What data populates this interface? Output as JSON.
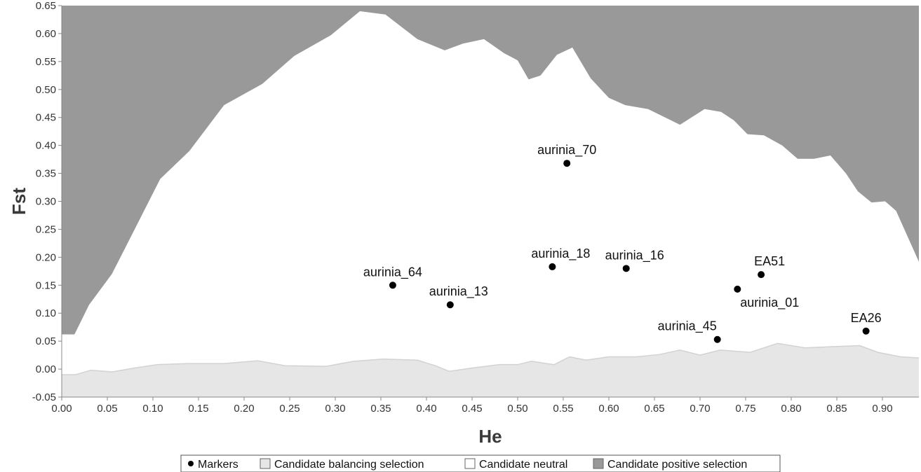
{
  "chart_data": {
    "type": "area",
    "xlabel": "He",
    "ylabel": "Fst",
    "xlim": [
      0.0,
      0.94
    ],
    "ylim": [
      -0.05,
      0.65
    ],
    "x_ticks": [
      "0.00",
      "0.05",
      "0.10",
      "0.15",
      "0.20",
      "0.25",
      "0.30",
      "0.35",
      "0.40",
      "0.45",
      "0.50",
      "0.55",
      "0.60",
      "0.65",
      "0.70",
      "0.75",
      "0.80",
      "0.85",
      "0.90"
    ],
    "y_ticks": [
      "-0.05",
      "0.00",
      "0.05",
      "0.10",
      "0.15",
      "0.20",
      "0.25",
      "0.30",
      "0.35",
      "0.40",
      "0.45",
      "0.50",
      "0.55",
      "0.60",
      "0.65"
    ],
    "grid": false,
    "legend_position": "bottom",
    "colors": {
      "positive_selection": "#999999",
      "neutral": "#ffffff",
      "balancing_selection": "#e6e6e6",
      "balancing_edge": "#d2d2d2",
      "marker": "#000000",
      "axis": "#888888"
    },
    "legend": [
      {
        "key": "markers",
        "label": "Markers",
        "symbol": "dot"
      },
      {
        "key": "balancing",
        "label": "Candidate balancing selection",
        "symbol": "box",
        "color": "#e6e6e6"
      },
      {
        "key": "neutral",
        "label": "Candidate neutral",
        "symbol": "box",
        "color": "#ffffff"
      },
      {
        "key": "positive",
        "label": "Candidate positive selection",
        "symbol": "box",
        "color": "#999999"
      }
    ],
    "upper_boundary": [
      {
        "x": 0.0,
        "y": 0.062
      },
      {
        "x": 0.014,
        "y": 0.062
      },
      {
        "x": 0.03,
        "y": 0.115
      },
      {
        "x": 0.055,
        "y": 0.17
      },
      {
        "x": 0.08,
        "y": 0.25
      },
      {
        "x": 0.108,
        "y": 0.34
      },
      {
        "x": 0.14,
        "y": 0.39
      },
      {
        "x": 0.178,
        "y": 0.472
      },
      {
        "x": 0.22,
        "y": 0.51
      },
      {
        "x": 0.255,
        "y": 0.56
      },
      {
        "x": 0.295,
        "y": 0.597
      },
      {
        "x": 0.327,
        "y": 0.64
      },
      {
        "x": 0.355,
        "y": 0.634
      },
      {
        "x": 0.39,
        "y": 0.59
      },
      {
        "x": 0.42,
        "y": 0.57
      },
      {
        "x": 0.44,
        "y": 0.582
      },
      {
        "x": 0.463,
        "y": 0.59
      },
      {
        "x": 0.485,
        "y": 0.565
      },
      {
        "x": 0.5,
        "y": 0.552
      },
      {
        "x": 0.512,
        "y": 0.518
      },
      {
        "x": 0.525,
        "y": 0.525
      },
      {
        "x": 0.543,
        "y": 0.562
      },
      {
        "x": 0.56,
        "y": 0.575
      },
      {
        "x": 0.58,
        "y": 0.52
      },
      {
        "x": 0.6,
        "y": 0.485
      },
      {
        "x": 0.618,
        "y": 0.472
      },
      {
        "x": 0.643,
        "y": 0.465
      },
      {
        "x": 0.678,
        "y": 0.437
      },
      {
        "x": 0.705,
        "y": 0.465
      },
      {
        "x": 0.723,
        "y": 0.46
      },
      {
        "x": 0.737,
        "y": 0.445
      },
      {
        "x": 0.752,
        "y": 0.42
      },
      {
        "x": 0.77,
        "y": 0.418
      },
      {
        "x": 0.79,
        "y": 0.4
      },
      {
        "x": 0.807,
        "y": 0.376
      },
      {
        "x": 0.825,
        "y": 0.376
      },
      {
        "x": 0.843,
        "y": 0.382
      },
      {
        "x": 0.86,
        "y": 0.35
      },
      {
        "x": 0.873,
        "y": 0.318
      },
      {
        "x": 0.888,
        "y": 0.298
      },
      {
        "x": 0.903,
        "y": 0.3
      },
      {
        "x": 0.915,
        "y": 0.283
      },
      {
        "x": 0.94,
        "y": 0.192
      }
    ],
    "lower_boundary": [
      {
        "x": 0.0,
        "y": -0.01
      },
      {
        "x": 0.015,
        "y": -0.01
      },
      {
        "x": 0.032,
        "y": -0.002
      },
      {
        "x": 0.055,
        "y": -0.005
      },
      {
        "x": 0.08,
        "y": 0.002
      },
      {
        "x": 0.105,
        "y": 0.008
      },
      {
        "x": 0.14,
        "y": 0.01
      },
      {
        "x": 0.178,
        "y": 0.01
      },
      {
        "x": 0.215,
        "y": 0.015
      },
      {
        "x": 0.245,
        "y": 0.006
      },
      {
        "x": 0.29,
        "y": 0.005
      },
      {
        "x": 0.32,
        "y": 0.014
      },
      {
        "x": 0.352,
        "y": 0.018
      },
      {
        "x": 0.39,
        "y": 0.016
      },
      {
        "x": 0.41,
        "y": 0.006
      },
      {
        "x": 0.425,
        "y": -0.004
      },
      {
        "x": 0.45,
        "y": 0.002
      },
      {
        "x": 0.48,
        "y": 0.008
      },
      {
        "x": 0.5,
        "y": 0.008
      },
      {
        "x": 0.515,
        "y": 0.014
      },
      {
        "x": 0.54,
        "y": 0.008
      },
      {
        "x": 0.557,
        "y": 0.022
      },
      {
        "x": 0.575,
        "y": 0.016
      },
      {
        "x": 0.6,
        "y": 0.022
      },
      {
        "x": 0.63,
        "y": 0.022
      },
      {
        "x": 0.655,
        "y": 0.026
      },
      {
        "x": 0.678,
        "y": 0.034
      },
      {
        "x": 0.7,
        "y": 0.025
      },
      {
        "x": 0.722,
        "y": 0.034
      },
      {
        "x": 0.755,
        "y": 0.03
      },
      {
        "x": 0.785,
        "y": 0.046
      },
      {
        "x": 0.815,
        "y": 0.038
      },
      {
        "x": 0.843,
        "y": 0.04
      },
      {
        "x": 0.875,
        "y": 0.042
      },
      {
        "x": 0.895,
        "y": 0.03
      },
      {
        "x": 0.92,
        "y": 0.022
      },
      {
        "x": 0.94,
        "y": 0.02
      }
    ],
    "markers": [
      {
        "label": "aurinia_70",
        "x": 0.554,
        "y": 0.368,
        "label_pos": "above"
      },
      {
        "label": "aurinia_64",
        "x": 0.363,
        "y": 0.15,
        "label_pos": "above"
      },
      {
        "label": "aurinia_13",
        "x": 0.426,
        "y": 0.115,
        "label_pos": "above-right"
      },
      {
        "label": "aurinia_18",
        "x": 0.538,
        "y": 0.183,
        "label_pos": "above-right"
      },
      {
        "label": "aurinia_16",
        "x": 0.619,
        "y": 0.18,
        "label_pos": "above-right"
      },
      {
        "label": "EA51",
        "x": 0.767,
        "y": 0.169,
        "label_pos": "above-right"
      },
      {
        "label": "aurinia_01",
        "x": 0.741,
        "y": 0.143,
        "label_pos": "below-right"
      },
      {
        "label": "aurinia_45",
        "x": 0.719,
        "y": 0.053,
        "label_pos": "above-left"
      },
      {
        "label": "EA26",
        "x": 0.882,
        "y": 0.068,
        "label_pos": "above"
      }
    ]
  }
}
